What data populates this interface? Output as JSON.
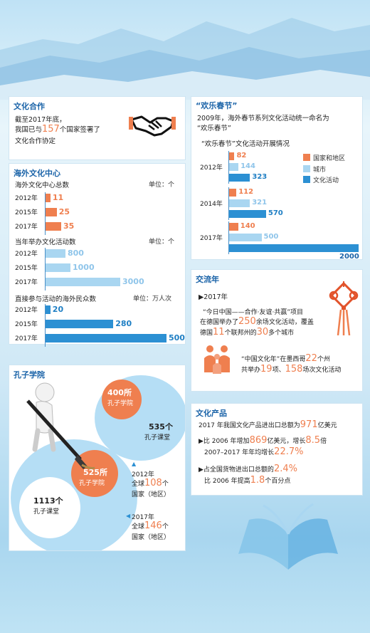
{
  "colors": {
    "orange": "#ef7f4f",
    "light_blue": "#a9d6f1",
    "dark_blue": "#2c90d3",
    "title_blue": "#1a63a8"
  },
  "cooperation": {
    "title": "文化合作",
    "line1": "截至2017年底，",
    "line2_a": "我国已与",
    "line2_num": "157",
    "line2_b": "个国家签署了",
    "line3": "文化合作协定",
    "icon": "handshake-icon"
  },
  "centers": {
    "title": "海外文化中心",
    "total_title": "海外文化中心总数",
    "total_unit": "单位：个",
    "activities_title": "当年举办文化活动数",
    "activities_unit": "单位：个",
    "people_title": "直接参与活动的海外民众数",
    "people_unit": "单位：万人次"
  },
  "spring": {
    "title": "“欢乐春节”",
    "line1": "2009年，海外春节系列文化活动统一命名为",
    "line2": "“欢乐春节”",
    "sub": "“欢乐春节”文化活动开展情况",
    "legend": [
      "国家和地区",
      "城市",
      "文化活动"
    ]
  },
  "exchange": {
    "title": "交流年",
    "year": "▶2017年",
    "l1": "“今日中国——合作·友谊·共赢”项目",
    "l2_a": "在德国举办了",
    "l2_num": "250",
    "l2_b": "余场文化活动，覆盖",
    "l3_a": "德国",
    "l3_num1": "11",
    "l3_b": "个联邦州的",
    "l3_num2": "30",
    "l3_c": "多个城市",
    "l4_a": "“中国文化年”在墨西哥",
    "l4_num": "22",
    "l4_b": "个州",
    "l5_a": "共举办",
    "l5_num1": "19",
    "l5_b": "项、",
    "l5_num2": "158",
    "l5_c": "场次文化活动",
    "knot_icon": "chinese-knot-icon",
    "people_icon": "people-icon"
  },
  "confucius": {
    "title": "孔子学院",
    "inst_2012": "400所",
    "inst_label": "孔子学院",
    "class_2012": "535个",
    "class_label": "孔子课堂",
    "inst_2017": "525所",
    "class_2017": "1113个",
    "y2012": "2012年",
    "global_a": "全球",
    "c2012": "108",
    "global_b": "个",
    "region": "国家（地区）",
    "y2017": "2017年",
    "c2017": "146",
    "brush_icon": "brush-figure-icon"
  },
  "products": {
    "title": "文化产品",
    "l1_a": "2017 年我国文化产品进出口总额为",
    "l1_num": "971",
    "l1_b": "亿美元",
    "l2_a": "▶比 2006 年增加",
    "l2_num1": "869",
    "l2_b": "亿美元，增长",
    "l2_num2": "8.5",
    "l2_c": "倍",
    "l3_a": "2007–2017 年年均增长",
    "l3_num": "22.7%",
    "l4_a": "▶占全国货物进出口总额的",
    "l4_num": "2.4%",
    "l5_a": "比 2006 年提高",
    "l5_num": "1.8",
    "l5_b": "个百分点"
  },
  "chart_data": [
    {
      "type": "bar",
      "title": "海外文化中心总数",
      "categories": [
        "2012年",
        "2015年",
        "2017年"
      ],
      "values": [
        11,
        25,
        35
      ],
      "unit": "单位：个"
    },
    {
      "type": "bar",
      "title": "当年举办文化活动数",
      "categories": [
        "2012年",
        "2015年",
        "2017年"
      ],
      "values": [
        800,
        1000,
        3000
      ],
      "unit": "单位：个"
    },
    {
      "type": "bar",
      "title": "直接参与活动的海外民众数",
      "categories": [
        "2012年",
        "2015年",
        "2017年"
      ],
      "values": [
        20,
        280,
        500
      ],
      "unit": "单位：万人次"
    },
    {
      "type": "bar",
      "title": "“欢乐春节”文化活动开展情况",
      "categories": [
        "2012年",
        "2014年",
        "2017年"
      ],
      "series": [
        {
          "name": "国家和地区",
          "values": [
            82,
            112,
            140
          ]
        },
        {
          "name": "城市",
          "values": [
            144,
            321,
            500
          ]
        },
        {
          "name": "文化活动",
          "values": [
            323,
            570,
            2000
          ]
        }
      ]
    }
  ]
}
